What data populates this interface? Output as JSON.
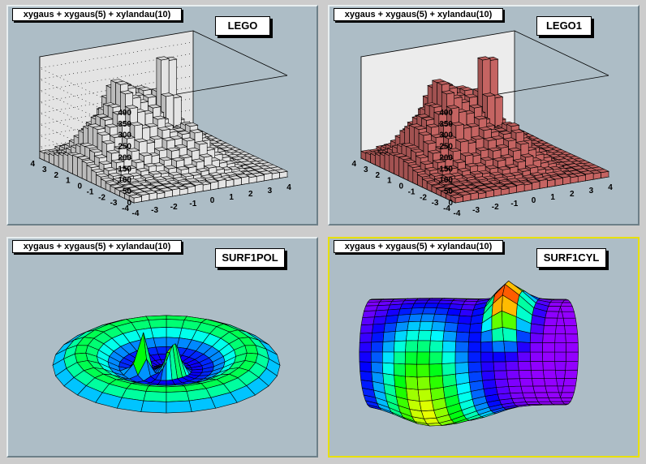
{
  "chart_data": [
    {
      "type": "lego",
      "title": "xygaus + xygaus(5) + xylandau(10)",
      "label": "LEGO",
      "x_ticks": [
        "-4",
        "-3",
        "-2",
        "-1",
        "0",
        "1",
        "2",
        "3",
        "4"
      ],
      "y_ticks": [
        "-4",
        "-3",
        "-2",
        "-1",
        "0",
        "1",
        "2",
        "3",
        "4"
      ],
      "z_ticks": [
        "0",
        "50",
        "100",
        "150",
        "200",
        "250",
        "300",
        "350",
        "400"
      ],
      "xlim": [
        -4,
        4
      ],
      "ylim": [
        -4,
        4
      ],
      "zlim": [
        0,
        450
      ],
      "bar_color": "#f0f0f0",
      "grid": true
    },
    {
      "type": "lego",
      "title": "xygaus + xygaus(5) + xylandau(10)",
      "label": "LEGO1",
      "x_ticks": [
        "-4",
        "-3",
        "-2",
        "-1",
        "0",
        "1",
        "2",
        "3",
        "4"
      ],
      "y_ticks": [
        "-4",
        "-3",
        "-2",
        "-1",
        "0",
        "1",
        "2",
        "3",
        "4"
      ],
      "z_ticks": [
        "0",
        "50",
        "100",
        "150",
        "200",
        "250",
        "300",
        "350",
        "400"
      ],
      "xlim": [
        -4,
        4
      ],
      "ylim": [
        -4,
        4
      ],
      "zlim": [
        0,
        450
      ],
      "bar_color": "#d06a68",
      "grid": false
    },
    {
      "type": "surface-polar",
      "title": "xygaus + xygaus(5) + xylandau(10)",
      "label": "SURF1POL"
    },
    {
      "type": "surface-cylindrical",
      "title": "xygaus + xygaus(5) + xylandau(10)",
      "label": "SURF1CYL",
      "selected": true
    }
  ]
}
